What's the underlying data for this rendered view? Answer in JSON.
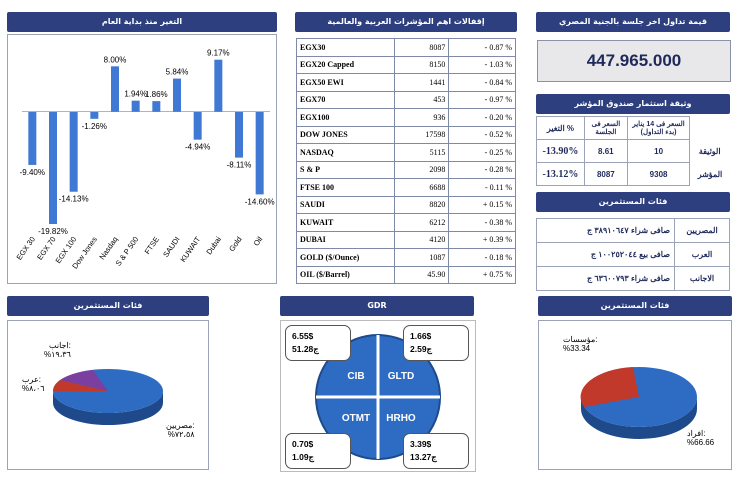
{
  "chart_panel": {
    "title": "التغير منذ بداية العام"
  },
  "chart_data": {
    "type": "bar",
    "title": "التغير منذ بداية العام",
    "categories": [
      "EGX 30",
      "EGX 70",
      "EGX 100",
      "Dow Jones",
      "Nasdaq",
      "S & P 500",
      "FTSE",
      "SAUDI",
      "KUWAIT",
      "Dubai",
      "Gold",
      "Oil"
    ],
    "values": [
      -9.4,
      -19.82,
      -14.13,
      -1.26,
      8.0,
      1.94,
      1.86,
      5.84,
      -4.94,
      9.17,
      -8.11,
      -14.6
    ],
    "labels": [
      "-9.40%",
      "-19.82%",
      "-14.13%",
      "-1.26%",
      "8.00%",
      "1.94%",
      "1.86%",
      "5.84%",
      "-4.94%",
      "9.17%",
      "-8.11%",
      "-14.60%"
    ],
    "ylim": [
      -20,
      10
    ]
  },
  "indices": {
    "title": "إقفالات اهم المؤشرات العربية والعالمية",
    "rows": [
      {
        "name": "EGX30",
        "value": "8087",
        "change": "- 0.87 %"
      },
      {
        "name": "EGX20 Capped",
        "value": "8150",
        "change": "- 1.03 %"
      },
      {
        "name": "EGX50 EWI",
        "value": "1441",
        "change": "- 0.84 %"
      },
      {
        "name": "EGX70",
        "value": "453",
        "change": "- 0.97 %"
      },
      {
        "name": "EGX100",
        "value": "936",
        "change": "- 0.20 %"
      },
      {
        "name": "DOW JONES",
        "value": "17598",
        "change": "- 0.52 %"
      },
      {
        "name": "NASDAQ",
        "value": "5115",
        "change": "- 0.25 %"
      },
      {
        "name": "S & P",
        "value": "2098",
        "change": "- 0.28 %"
      },
      {
        "name": "FTSE 100",
        "value": "6688",
        "change": "- 0.11 %"
      },
      {
        "name": "SAUDI",
        "value": "8820",
        "change": "+ 0.15 %"
      },
      {
        "name": "KUWAIT",
        "value": "6212",
        "change": "- 0.38 %"
      },
      {
        "name": "DUBAI",
        "value": "4120",
        "change": "+ 0.39 %"
      },
      {
        "name": "GOLD ($/Ounce)",
        "value": "1087",
        "change": "- 0.18 %"
      },
      {
        "name": "OIL ($/Barrel)",
        "value": "45.90",
        "change": "+ 0.75 %"
      }
    ]
  },
  "foreign_value": {
    "title": "قيمة تداول اخر جلسة بالجنية المصري",
    "value": "447.965.000"
  },
  "fund": {
    "title": "وثيقة استثمار صندوق المؤشر",
    "headers": {
      "change": "التغير %",
      "session_price": "السعر فى الجلسة",
      "jan_price": "السعر فى 14 يناير (بدء التداول)"
    },
    "rows": [
      {
        "label": "الوثيقة",
        "jan": "10",
        "session": "8.61",
        "change": "-13.90%"
      },
      {
        "label": "المؤشر",
        "jan": "9308",
        "session": "8087",
        "change": "-13.12%"
      }
    ]
  },
  "investors": {
    "title": "فئات المستثمرين",
    "rows": [
      {
        "label": "المصريين",
        "value": "صافى شراء ٣٨٩١٠٦٤٧ ج"
      },
      {
        "label": "العرب",
        "value": "صافى بيع ١٠٠٢٥٢٠٤٤ ج"
      },
      {
        "label": "الاجانب",
        "value": "صافى شراء ٦٣٦٠٠٧٩٣ ج"
      }
    ]
  },
  "pie_left": {
    "title": "فئات المستثمرين",
    "slices": [
      {
        "label": "مصريين:",
        "pct": "%٧٢،٥٨",
        "value": 72.58,
        "color": "#2e6cc4"
      },
      {
        "label": "عرب:",
        "pct": "%٨،٠٦",
        "value": 8.06,
        "color": "#c0392b"
      },
      {
        "label": "اجانب:",
        "pct": "%١٩،٣٦",
        "value": 19.36,
        "color": "#7b3fa0"
      }
    ]
  },
  "gdr": {
    "title": "GDR",
    "quadrants": [
      "CIB",
      "GLTD",
      "OTMT",
      "HRHO"
    ],
    "boxes": [
      {
        "line1": "6.55$",
        "line2": "51.28ج"
      },
      {
        "line1": "1.66$",
        "line2": "2.59ج"
      },
      {
        "line1": "0.70$",
        "line2": "1.09ج"
      },
      {
        "line1": "3.39$",
        "line2": "13.27ج"
      }
    ]
  },
  "pie_right": {
    "title": "فئات المستثمرين",
    "slices": [
      {
        "label": "مؤسسات:",
        "pct": "%33.34",
        "value": 33.34,
        "color": "#c0392b"
      },
      {
        "label": "افراد:",
        "pct": "%66.66",
        "value": 66.66,
        "color": "#2e6cc4"
      }
    ]
  }
}
